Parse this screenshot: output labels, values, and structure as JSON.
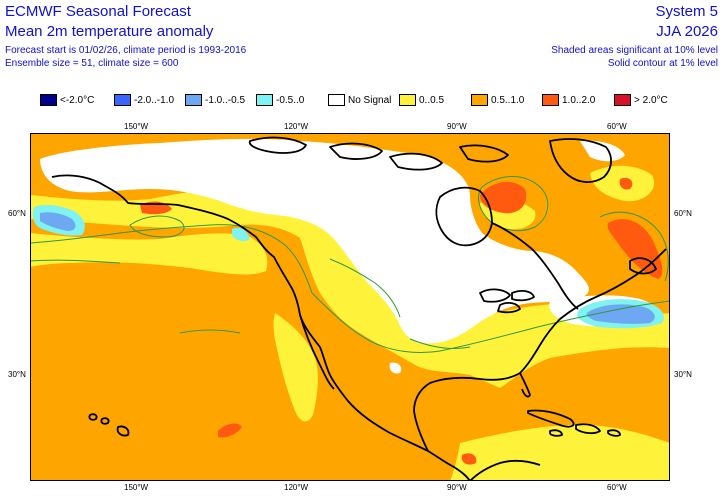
{
  "header": {
    "title": "ECMWF Seasonal Forecast",
    "subtitle": "Mean 2m temperature anomaly",
    "info_line1": "Forecast start is 01/02/26, climate period is 1993-2016",
    "info_line2": "Ensemble size = 51, climate size = 600",
    "system": "System 5",
    "season": "JJA 2026",
    "note_line1": "Shaded areas significant at 10% level",
    "note_line2": "Solid contour at 1% level"
  },
  "legend": [
    {
      "label": "<-2.0°C",
      "color": "#00008c"
    },
    {
      "label": "-2.0..-1.0",
      "color": "#3a66ff"
    },
    {
      "label": "-1.0..-0.5",
      "color": "#6fa8f2"
    },
    {
      "label": "-0.5..0",
      "color": "#7ff2f2"
    },
    {
      "label": "No Signal",
      "color": "#ffffff"
    },
    {
      "label": "0..0.5",
      "color": "#fff23a"
    },
    {
      "label": "0.5..1.0",
      "color": "#ffa500"
    },
    {
      "label": "1.0..2.0",
      "color": "#ff5a10"
    },
    {
      "label": "> 2.0°C",
      "color": "#d8102a"
    }
  ],
  "axes": {
    "lon_labels": [
      "150°W",
      "120°W",
      "90°W",
      "60°W"
    ],
    "lat_labels": [
      "60°N",
      "30°N"
    ]
  },
  "colors": {
    "header_text": "#1010d8",
    "contour": "#2f9a3a",
    "coast": "#000000"
  }
}
